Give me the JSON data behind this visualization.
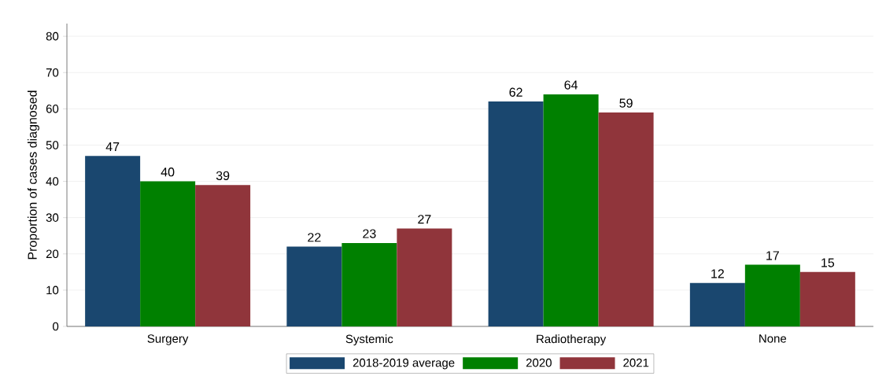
{
  "chart_data": {
    "type": "bar",
    "ylabel": "Proportion of cases diagnosed",
    "categories": [
      "Surgery",
      "Systemic",
      "Radiotherapy",
      "None"
    ],
    "series": [
      {
        "name": "2018-2019 average",
        "color": "#1a476f",
        "values": [
          47,
          22,
          62,
          12
        ]
      },
      {
        "name": "2020",
        "color": "#008000",
        "values": [
          40,
          23,
          64,
          17
        ]
      },
      {
        "name": "2021",
        "color": "#90353b",
        "values": [
          39,
          27,
          59,
          15
        ]
      }
    ],
    "ylim": [
      0,
      83.5
    ],
    "yticks": [
      0,
      10,
      20,
      30,
      40,
      50,
      60,
      70,
      80
    ],
    "grid": "y",
    "legend": "bottom",
    "data_labels": true
  }
}
